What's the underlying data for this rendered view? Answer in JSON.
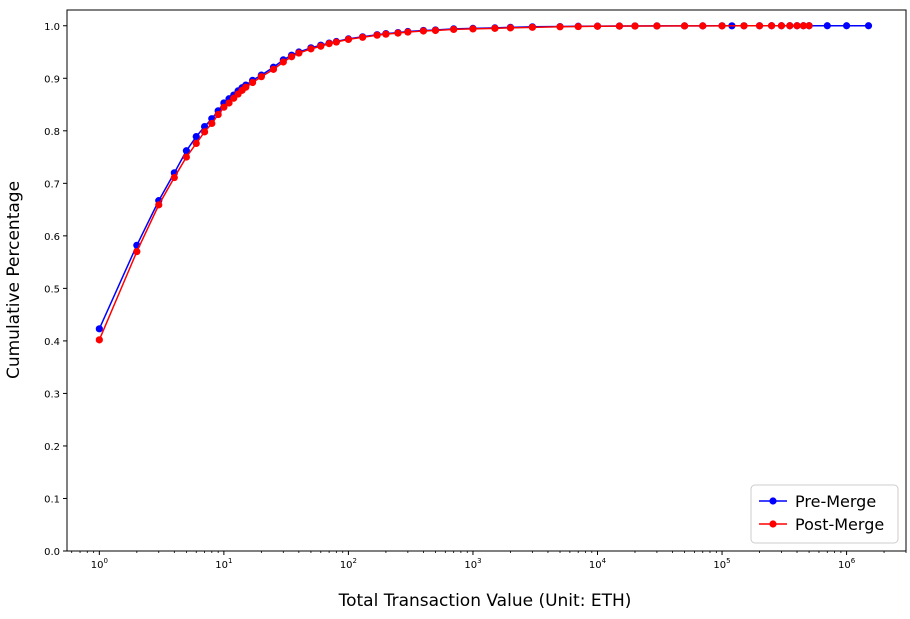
{
  "chart_data": {
    "type": "line",
    "title": "",
    "xlabel": "Total Transaction Value (Unit: ETH)",
    "ylabel": "Cumulative Percentage",
    "x_scale": "log",
    "xlim": [
      0.55,
      3000000
    ],
    "ylim": [
      0.0,
      1.03
    ],
    "x_ticks": [
      {
        "base": "10",
        "exp": "0",
        "value": 1
      },
      {
        "base": "10",
        "exp": "1",
        "value": 10
      },
      {
        "base": "10",
        "exp": "2",
        "value": 100
      },
      {
        "base": "10",
        "exp": "3",
        "value": 1000
      },
      {
        "base": "10",
        "exp": "4",
        "value": 10000
      },
      {
        "base": "10",
        "exp": "5",
        "value": 100000
      },
      {
        "base": "10",
        "exp": "6",
        "value": 1000000
      }
    ],
    "y_ticks": [
      {
        "label": "0.0",
        "value": 0.0
      },
      {
        "label": "0.1",
        "value": 0.1
      },
      {
        "label": "0.2",
        "value": 0.2
      },
      {
        "label": "0.3",
        "value": 0.3
      },
      {
        "label": "0.4",
        "value": 0.4
      },
      {
        "label": "0.5",
        "value": 0.5
      },
      {
        "label": "0.6",
        "value": 0.6
      },
      {
        "label": "0.7",
        "value": 0.7
      },
      {
        "label": "0.8",
        "value": 0.8
      },
      {
        "label": "0.9",
        "value": 0.9
      },
      {
        "label": "1.0",
        "value": 1.0
      }
    ],
    "grid": false,
    "legend_position": "bottom-right",
    "series": [
      {
        "name": "Pre-Merge",
        "color": "#0000ff",
        "marker": "circle",
        "x": [
          1,
          2,
          3,
          4,
          5,
          6,
          7,
          8,
          9,
          10,
          11,
          12,
          13,
          14,
          15,
          17,
          20,
          25,
          30,
          35,
          40,
          50,
          60,
          70,
          80,
          100,
          130,
          170,
          200,
          250,
          300,
          400,
          500,
          700,
          1000,
          1500,
          2000,
          3000,
          5000,
          7000,
          10000,
          15000,
          20000,
          30000,
          50000,
          70000,
          100000,
          120000,
          150000,
          200000,
          250000,
          300000,
          350000,
          400000,
          450000,
          500000,
          700000,
          1000000,
          1500000
        ],
        "y": [
          0.423,
          0.582,
          0.667,
          0.72,
          0.762,
          0.789,
          0.808,
          0.823,
          0.838,
          0.853,
          0.861,
          0.868,
          0.876,
          0.882,
          0.887,
          0.896,
          0.906,
          0.921,
          0.935,
          0.944,
          0.95,
          0.958,
          0.963,
          0.967,
          0.97,
          0.975,
          0.979,
          0.983,
          0.985,
          0.987,
          0.989,
          0.991,
          0.992,
          0.994,
          0.995,
          0.996,
          0.997,
          0.998,
          0.9985,
          0.999,
          0.9993,
          0.9995,
          0.9996,
          0.9997,
          0.9998,
          0.9998,
          0.9999,
          0.9999,
          0.9999,
          1.0,
          1.0,
          1.0,
          1.0,
          1.0,
          1.0,
          1.0,
          1.0,
          1.0,
          1.0
        ]
      },
      {
        "name": "Post-Merge",
        "color": "#ff0000",
        "marker": "circle",
        "x": [
          1,
          2,
          3,
          4,
          5,
          6,
          7,
          8,
          9,
          10,
          11,
          12,
          13,
          14,
          15,
          17,
          20,
          25,
          30,
          35,
          40,
          50,
          60,
          70,
          80,
          100,
          130,
          170,
          200,
          250,
          300,
          400,
          500,
          700,
          1000,
          1500,
          2000,
          3000,
          5000,
          7000,
          10000,
          15000,
          20000,
          30000,
          50000,
          70000,
          100000,
          150000,
          200000,
          250000,
          300000,
          350000,
          400000,
          450000,
          500000
        ],
        "y": [
          0.402,
          0.57,
          0.659,
          0.711,
          0.75,
          0.776,
          0.798,
          0.814,
          0.831,
          0.845,
          0.853,
          0.862,
          0.87,
          0.877,
          0.883,
          0.892,
          0.903,
          0.917,
          0.931,
          0.941,
          0.948,
          0.956,
          0.961,
          0.966,
          0.969,
          0.974,
          0.978,
          0.982,
          0.984,
          0.986,
          0.988,
          0.99,
          0.991,
          0.993,
          0.994,
          0.995,
          0.996,
          0.997,
          0.998,
          0.9985,
          0.999,
          0.9993,
          0.9995,
          0.9996,
          0.9997,
          0.9998,
          0.9998,
          0.9999,
          0.9999,
          1.0,
          1.0,
          1.0,
          1.0,
          1.0,
          1.0
        ]
      }
    ]
  }
}
